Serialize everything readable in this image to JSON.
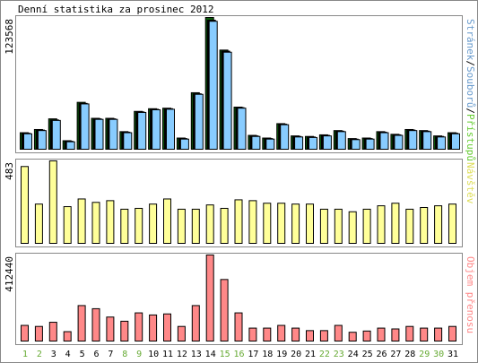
{
  "title": "Denní statistika za prosinec 2012",
  "chart_data": [
    {
      "type": "bar",
      "panel": "top",
      "ymax_label": "123568",
      "ylim": [
        0,
        123568
      ],
      "categories": [
        "1",
        "2",
        "3",
        "4",
        "5",
        "6",
        "7",
        "8",
        "9",
        "10",
        "11",
        "12",
        "13",
        "14",
        "15",
        "16",
        "17",
        "18",
        "19",
        "20",
        "21",
        "22",
        "23",
        "24",
        "25",
        "26",
        "27",
        "28",
        "29",
        "30",
        "31"
      ],
      "legend": [
        "Stránek",
        "Souborů",
        "Přístupů"
      ],
      "legend_colors": [
        "#6699cc",
        "#6699cc",
        "#66cc33"
      ],
      "series": [
        {
          "name": "Přístupů",
          "color": "#0c5c0c",
          "values": [
            15500,
            18500,
            28500,
            8000,
            44000,
            29000,
            29000,
            16500,
            35500,
            38000,
            38500,
            10500,
            53000,
            123568,
            93000,
            39500,
            13000,
            10500,
            24000,
            12500,
            12000,
            13500,
            17500,
            10000,
            10500,
            16500,
            14000,
            18500,
            17500,
            12500,
            15500
          ]
        },
        {
          "name": "Souborů",
          "color": "#000000",
          "values": [
            15000,
            18000,
            27500,
            7500,
            43000,
            28500,
            28500,
            16000,
            35000,
            37500,
            38000,
            10000,
            52000,
            121000,
            92000,
            39000,
            12500,
            10000,
            23500,
            12000,
            11500,
            13000,
            17000,
            9500,
            10000,
            16000,
            13500,
            18000,
            17000,
            12000,
            15000
          ]
        },
        {
          "name": "Stránek",
          "color": "#88ccff",
          "values": [
            14500,
            17500,
            27000,
            7000,
            42500,
            28000,
            28000,
            15500,
            34500,
            37000,
            37500,
            9500,
            51500,
            120000,
            91000,
            38500,
            12000,
            9500,
            23000,
            11500,
            11000,
            12500,
            16500,
            9000,
            9500,
            15500,
            13000,
            17500,
            16500,
            11500,
            14500
          ]
        }
      ]
    },
    {
      "type": "bar",
      "panel": "middle",
      "ymax_label": "483",
      "ylim": [
        0,
        483
      ],
      "categories": [
        "1",
        "2",
        "3",
        "4",
        "5",
        "6",
        "7",
        "8",
        "9",
        "10",
        "11",
        "12",
        "13",
        "14",
        "15",
        "16",
        "17",
        "18",
        "19",
        "20",
        "21",
        "22",
        "23",
        "24",
        "25",
        "26",
        "27",
        "28",
        "29",
        "30",
        "31"
      ],
      "legend": [
        "Návštěv"
      ],
      "legend_colors": [
        "#dddd55"
      ],
      "series": [
        {
          "name": "Návštěv",
          "color": "#ffff99",
          "values": [
            450,
            230,
            483,
            215,
            260,
            240,
            250,
            200,
            205,
            230,
            260,
            200,
            200,
            225,
            205,
            255,
            250,
            235,
            235,
            230,
            230,
            200,
            200,
            185,
            200,
            220,
            235,
            200,
            210,
            220,
            230
          ]
        }
      ]
    },
    {
      "type": "bar",
      "panel": "bottom",
      "ymax_label": "412440",
      "ylim": [
        0,
        412440
      ],
      "categories": [
        "1",
        "2",
        "3",
        "4",
        "5",
        "6",
        "7",
        "8",
        "9",
        "10",
        "11",
        "12",
        "13",
        "14",
        "15",
        "16",
        "17",
        "18",
        "19",
        "20",
        "21",
        "22",
        "23",
        "24",
        "25",
        "26",
        "27",
        "28",
        "29",
        "30",
        "31"
      ],
      "legend": [
        "Objem přenosu"
      ],
      "legend_colors": [
        "#ff8888"
      ],
      "series": [
        {
          "name": "Objem přenosu",
          "color": "#ff8888",
          "values": [
            75000,
            70000,
            90000,
            45000,
            170000,
            155000,
            115000,
            95000,
            135000,
            125000,
            130000,
            70000,
            170000,
            412440,
            295000,
            135000,
            62000,
            62000,
            75000,
            62000,
            50000,
            50000,
            75000,
            42000,
            48000,
            62000,
            58000,
            70000,
            62000,
            62000,
            70000
          ]
        }
      ]
    }
  ],
  "x_labels": [
    "1",
    "2",
    "3",
    "4",
    "5",
    "6",
    "7",
    "8",
    "9",
    "10",
    "11",
    "12",
    "13",
    "14",
    "15",
    "16",
    "17",
    "18",
    "19",
    "20",
    "21",
    "22",
    "23",
    "24",
    "25",
    "26",
    "27",
    "28",
    "29",
    "30",
    "31"
  ],
  "x_label_colors": [
    "#66aa33",
    "#66aa33",
    "#000000",
    "#000000",
    "#000000",
    "#000000",
    "#000000",
    "#66aa33",
    "#66aa33",
    "#000000",
    "#000000",
    "#000000",
    "#000000",
    "#000000",
    "#66aa33",
    "#66aa33",
    "#000000",
    "#000000",
    "#000000",
    "#000000",
    "#000000",
    "#66aa33",
    "#66aa33",
    "#000000",
    "#000000",
    "#000000",
    "#000000",
    "#000000",
    "#66aa33",
    "#66aa33",
    "#000000"
  ]
}
